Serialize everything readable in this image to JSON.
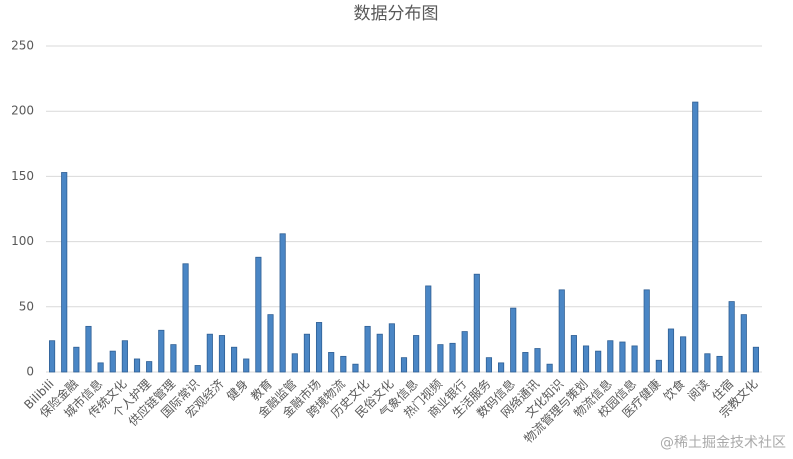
{
  "chart_data": {
    "type": "bar",
    "title": "数据分布图",
    "watermark": "@稀土掘金技术社区",
    "categories": [
      "Bilibili",
      null,
      "保险金融",
      null,
      "城市信息",
      null,
      "传统文化",
      null,
      "个人护理",
      null,
      "供应链管理",
      null,
      "国际常识",
      null,
      "宏观经济",
      null,
      "健身",
      null,
      "教育",
      null,
      "金融监管",
      null,
      "金融市场",
      null,
      "跨境物流",
      null,
      "历史文化",
      null,
      "民俗文化",
      null,
      "气象信息",
      null,
      "热门视频",
      null,
      "商业银行",
      null,
      "生活服务",
      null,
      "数码信息",
      null,
      "网络通讯",
      null,
      "文化知识",
      null,
      "物流管理与策划",
      null,
      "物流信息",
      null,
      "校园信息",
      null,
      "医疗健康",
      null,
      "饮食",
      null,
      "阅读",
      null,
      "住宿",
      null,
      "宗教文化"
    ],
    "values": [
      24,
      153,
      19,
      35,
      7,
      16,
      24,
      10,
      8,
      32,
      21,
      83,
      5,
      29,
      28,
      19,
      10,
      88,
      44,
      106,
      14,
      29,
      38,
      15,
      12,
      6,
      35,
      29,
      37,
      11,
      28,
      66,
      21,
      22,
      31,
      75,
      11,
      7,
      49,
      15,
      18,
      6,
      63,
      28,
      20,
      16,
      24,
      23,
      20,
      63,
      9,
      33,
      27,
      207,
      14,
      12,
      54,
      44,
      19
    ],
    "color": "#4a86c5",
    "ylim": [
      0,
      250
    ],
    "yticks": [
      0,
      50,
      100,
      150,
      200,
      250
    ],
    "grid": true
  }
}
